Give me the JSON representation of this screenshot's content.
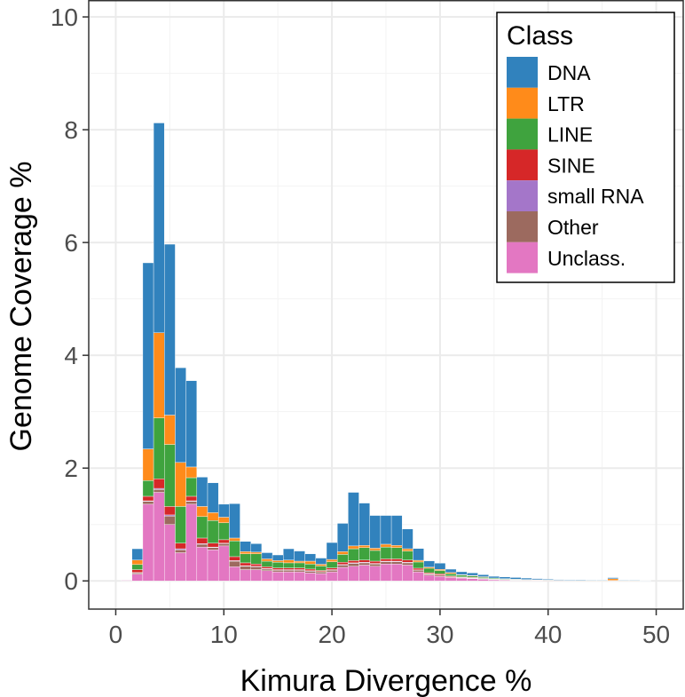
{
  "chart_data": {
    "type": "bar",
    "stacked": true,
    "title": "",
    "xlabel": "Kimura Divergence %",
    "ylabel": "Genome Coverage %",
    "xlim": [
      -2.5,
      52.5
    ],
    "ylim": [
      -0.5,
      10.3
    ],
    "xticks": [
      0,
      10,
      20,
      30,
      40,
      50
    ],
    "yticks": [
      0,
      2,
      4,
      6,
      8,
      10
    ],
    "grid": true,
    "legend_title": "Class",
    "legend_position": "top-right",
    "categories": [
      1,
      2,
      3,
      4,
      5,
      6,
      7,
      8,
      9,
      10,
      11,
      12,
      13,
      14,
      15,
      16,
      17,
      18,
      19,
      20,
      21,
      22,
      23,
      24,
      25,
      26,
      27,
      28,
      29,
      30,
      31,
      32,
      33,
      34,
      35,
      36,
      37,
      38,
      39,
      40,
      41,
      42,
      43,
      44,
      45,
      46,
      47,
      48,
      49
    ],
    "series": [
      {
        "name": "Unclass.",
        "color": "#E377C2",
        "values": [
          0.01,
          0.12,
          1.36,
          1.57,
          1.0,
          0.5,
          1.36,
          0.6,
          0.55,
          0.62,
          0.25,
          0.2,
          0.2,
          0.18,
          0.16,
          0.16,
          0.16,
          0.14,
          0.13,
          0.16,
          0.24,
          0.26,
          0.28,
          0.26,
          0.3,
          0.3,
          0.28,
          0.16,
          0.1,
          0.08,
          0.06,
          0.05,
          0.04,
          0.03,
          0.02,
          0.015,
          0.01,
          0.01,
          0.008,
          0.005,
          0.004,
          0.003,
          0.002,
          0.002,
          0.002,
          0.002,
          0.002,
          0.002,
          0.001
        ]
      },
      {
        "name": "Other",
        "color": "#9C6A5F",
        "values": [
          0.0,
          0.02,
          0.05,
          0.05,
          0.15,
          0.05,
          0.05,
          0.05,
          0.04,
          0.04,
          0.1,
          0.06,
          0.05,
          0.03,
          0.03,
          0.03,
          0.03,
          0.03,
          0.03,
          0.03,
          0.04,
          0.05,
          0.04,
          0.04,
          0.04,
          0.04,
          0.04,
          0.03,
          0.02,
          0.02,
          0.01,
          0.01,
          0.01,
          0.005,
          0.005,
          0.003,
          0.002,
          0.002,
          0.002,
          0.001,
          0.001,
          0.001,
          0.001,
          0.001,
          0.001,
          0.001,
          0.001,
          0.001,
          0.0
        ]
      },
      {
        "name": "small RNA",
        "color": "#A476C9",
        "values": [
          0.0,
          0.01,
          0.01,
          0.02,
          0.02,
          0.02,
          0.01,
          0.01,
          0.01,
          0.01,
          0.01,
          0.01,
          0.01,
          0.01,
          0.01,
          0.01,
          0.01,
          0.01,
          0.005,
          0.01,
          0.01,
          0.01,
          0.01,
          0.01,
          0.01,
          0.01,
          0.01,
          0.005,
          0.005,
          0.005,
          0.003,
          0.002,
          0.002,
          0.001,
          0.001,
          0.001,
          0.001,
          0.0,
          0.0,
          0.0,
          0.0,
          0.0,
          0.0,
          0.0,
          0.0,
          0.0,
          0.0,
          0.0,
          0.0
        ]
      },
      {
        "name": "SINE",
        "color": "#D62728",
        "values": [
          0.0,
          0.05,
          0.08,
          0.17,
          0.15,
          0.1,
          0.08,
          0.1,
          0.07,
          0.06,
          0.07,
          0.05,
          0.04,
          0.03,
          0.03,
          0.03,
          0.03,
          0.03,
          0.02,
          0.03,
          0.04,
          0.04,
          0.04,
          0.04,
          0.04,
          0.04,
          0.04,
          0.03,
          0.02,
          0.02,
          0.015,
          0.01,
          0.01,
          0.008,
          0.005,
          0.004,
          0.003,
          0.002,
          0.002,
          0.001,
          0.001,
          0.001,
          0.001,
          0.001,
          0.001,
          0.001,
          0.001,
          0.001,
          0.0
        ]
      },
      {
        "name": "LINE",
        "color": "#3FA33E",
        "values": [
          0.0,
          0.09,
          0.28,
          1.08,
          1.1,
          0.65,
          0.33,
          0.38,
          0.4,
          0.3,
          0.28,
          0.16,
          0.18,
          0.1,
          0.1,
          0.09,
          0.09,
          0.09,
          0.08,
          0.11,
          0.14,
          0.21,
          0.22,
          0.19,
          0.21,
          0.2,
          0.16,
          0.11,
          0.08,
          0.06,
          0.04,
          0.03,
          0.025,
          0.02,
          0.015,
          0.012,
          0.01,
          0.008,
          0.006,
          0.005,
          0.004,
          0.003,
          0.002,
          0.002,
          0.002,
          0.004,
          0.002,
          0.002,
          0.001
        ]
      },
      {
        "name": "LTR",
        "color": "#FF8B1A",
        "values": [
          0.0,
          0.08,
          0.56,
          1.51,
          0.52,
          0.78,
          0.19,
          0.18,
          0.14,
          0.1,
          0.05,
          0.04,
          0.03,
          0.04,
          0.03,
          0.05,
          0.03,
          0.05,
          0.03,
          0.04,
          0.05,
          0.05,
          0.04,
          0.04,
          0.05,
          0.04,
          0.04,
          0.03,
          0.02,
          0.02,
          0.02,
          0.01,
          0.01,
          0.01,
          0.005,
          0.005,
          0.004,
          0.003,
          0.003,
          0.002,
          0.002,
          0.002,
          0.001,
          0.001,
          0.001,
          0.03,
          0.001,
          0.001,
          0.0
        ]
      },
      {
        "name": "DNA",
        "color": "#3182BD",
        "values": [
          0.0,
          0.2,
          3.3,
          3.72,
          3.03,
          1.68,
          1.53,
          0.52,
          0.53,
          0.23,
          0.61,
          0.18,
          0.15,
          0.11,
          0.1,
          0.2,
          0.18,
          0.13,
          0.11,
          0.3,
          0.5,
          0.95,
          0.75,
          0.58,
          0.51,
          0.53,
          0.35,
          0.21,
          0.11,
          0.11,
          0.06,
          0.05,
          0.045,
          0.036,
          0.03,
          0.03,
          0.03,
          0.025,
          0.02,
          0.015,
          0.012,
          0.01,
          0.012,
          0.01,
          0.01,
          0.02,
          0.01,
          0.01,
          0.006
        ]
      }
    ],
    "legend_order": [
      "DNA",
      "LTR",
      "LINE",
      "SINE",
      "small RNA",
      "Other",
      "Unclass."
    ]
  }
}
